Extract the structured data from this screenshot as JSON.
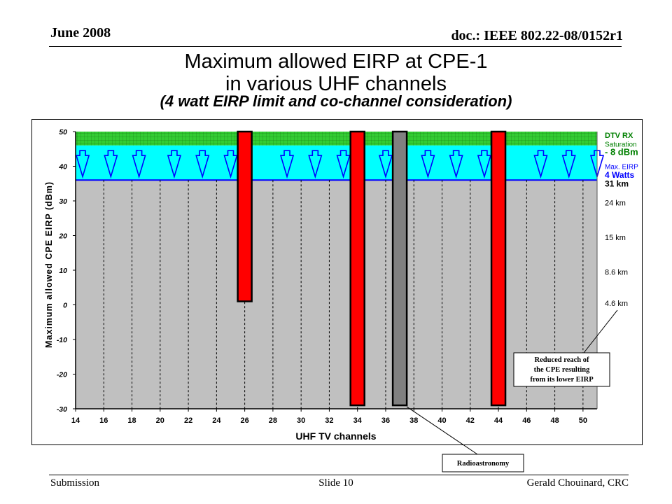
{
  "header": {
    "date": "June 2008",
    "doc": "doc.: IEEE 802.22-08/0152r1"
  },
  "title": {
    "line1": "Maximum allowed EIRP at CPE-1",
    "line2": "in various UHF channels",
    "line3": "(4 watt EIRP limit and co-channel consideration)"
  },
  "chart_data": {
    "type": "bar",
    "xlabel": "UHF TV channels",
    "ylabel": "Maximum allowed CPE EIRP (dBm)",
    "xlim": [
      14,
      51
    ],
    "ylim": [
      -30,
      50
    ],
    "xticks": [
      "14",
      "16",
      "18",
      "20",
      "22",
      "24",
      "26",
      "28",
      "30",
      "32",
      "34",
      "36",
      "38",
      "40",
      "42",
      "44",
      "46",
      "48",
      "50"
    ],
    "yticks": [
      "50",
      "40",
      "30",
      "20",
      "10",
      "0",
      "-10",
      "-20",
      "-30"
    ],
    "baseline_eirp_dbm": 36,
    "dtv_saturation_band_dbm": [
      46,
      50
    ],
    "max_eirp_band_dbm": [
      36,
      46
    ],
    "bars": [
      {
        "channel": 26,
        "low": 1,
        "high": 50,
        "color": "#ff0000"
      },
      {
        "channel": 34,
        "low": -29,
        "high": 50,
        "color": "#ff0000"
      },
      {
        "channel": 37,
        "low": -29,
        "high": 50,
        "color": "#808080"
      },
      {
        "channel": 44,
        "low": -29,
        "high": 50,
        "color": "#ff0000"
      }
    ],
    "arrow_channels": [
      14.5,
      16.5,
      18.5,
      21,
      23,
      25,
      29,
      31,
      33,
      36,
      39,
      41,
      43,
      47,
      49,
      51
    ],
    "right_labels": [
      {
        "y": 49,
        "text": "DTV RX",
        "color": "#008000",
        "bold": true,
        "size": 11
      },
      {
        "y": 46.5,
        "text": "Saturation",
        "color": "#008000",
        "bold": false,
        "size": 10
      },
      {
        "y": 44,
        "text": "- 8 dBm",
        "color": "#008000",
        "bold": true,
        "size": 13
      },
      {
        "y": 40,
        "text": "Max. EIRP",
        "color": "#0000ff",
        "bold": false,
        "size": 10
      },
      {
        "y": 37.5,
        "text": "4 Watts",
        "color": "#0000ff",
        "bold": true,
        "size": 12
      },
      {
        "y": 35,
        "text": "31 km",
        "color": "#000000",
        "bold": true,
        "size": 12
      },
      {
        "y": 29.5,
        "text": "24 km",
        "color": "#000000",
        "bold": false,
        "size": 11
      },
      {
        "y": 19.5,
        "text": "15 km",
        "color": "#000000",
        "bold": false,
        "size": 11
      },
      {
        "y": 9.5,
        "text": "8.6 km",
        "color": "#000000",
        "bold": false,
        "size": 11
      },
      {
        "y": 0.5,
        "text": "4.6 km",
        "color": "#000000",
        "bold": false,
        "size": 11
      }
    ],
    "annotations": {
      "reduced_reach": [
        "Reduced reach of",
        "the CPE resulting",
        "from its lower EIRP"
      ],
      "radioastronomy": "Radioastronomy"
    },
    "colors": {
      "plot_bg": "#c0c0c0",
      "dtv_band": "#33cc33",
      "eirp_band": "#00ffff",
      "arrow": "#0000ff"
    }
  },
  "footer": {
    "left": "Submission",
    "center": "Slide 10",
    "right": "Gerald Chouinard, CRC"
  }
}
